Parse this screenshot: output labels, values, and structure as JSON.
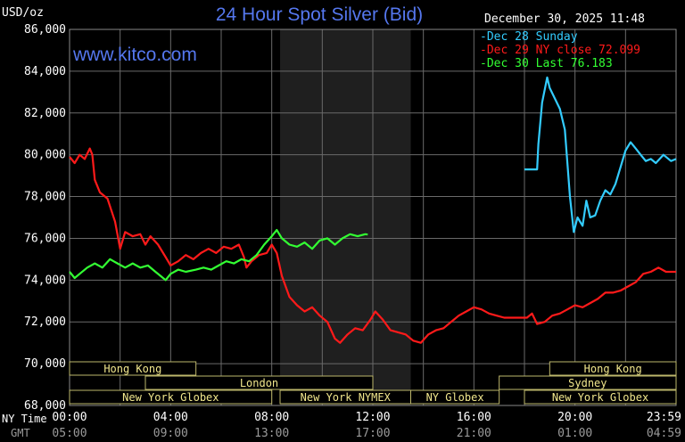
{
  "chart_data": {
    "type": "line",
    "title": "24 Hour Spot Silver (Bid)",
    "unit_label": "USD/oz",
    "watermark": "www.kitco.com",
    "timestamp": "December 30, 2025 11:48",
    "ylim": [
      68000,
      86000
    ],
    "y_ticks": [
      "86,000",
      "84,000",
      "82,000",
      "80,000",
      "78,000",
      "76,000",
      "74,000",
      "72,000",
      "70,000",
      "68,000"
    ],
    "x_axis_name": "NY Time",
    "gmt_axis_name": "GMT",
    "x_ticks": [
      "00:00",
      "04:00",
      "08:00",
      "12:00",
      "16:00",
      "20:00",
      "23:59"
    ],
    "gmt_ticks": [
      "05:00",
      "09:00",
      "13:00",
      "17:00",
      "21:00",
      "01:00",
      "04:59"
    ],
    "legend": [
      {
        "label": "Dec 28 Sunday",
        "color": "#33ccff"
      },
      {
        "label": "Dec 29 NY close 72.099",
        "color": "#ff1a1a"
      },
      {
        "label": "Dec 30 Last 76.183",
        "color": "#33ff33"
      }
    ],
    "sessions": [
      {
        "label": "Hong Kong",
        "start": 0.0,
        "end": 5.0,
        "row": 0
      },
      {
        "label": "London",
        "start": 3.0,
        "end": 12.0,
        "row": 1
      },
      {
        "label": "New York Globex",
        "start": 0.0,
        "end": 8.0,
        "row": 2
      },
      {
        "label": "New York NYMEX",
        "start": 8.33,
        "end": 13.5,
        "row": 2
      },
      {
        "label": "NY Globex",
        "start": 13.5,
        "end": 17.0,
        "row": 2
      },
      {
        "label": "Hong Kong",
        "start": 19.0,
        "end": 24.0,
        "row": 0
      },
      {
        "label": "Sydney",
        "start": 17.0,
        "end": 24.0,
        "row": 1
      },
      {
        "label": "New York Globex",
        "start": 18.0,
        "end": 24.0,
        "row": 2
      }
    ],
    "series": [
      {
        "name": "Dec 28 Sunday",
        "color": "#33ccff",
        "points": [
          [
            18.0,
            79300
          ],
          [
            18.5,
            79300
          ],
          [
            18.55,
            80500
          ],
          [
            18.7,
            82500
          ],
          [
            18.9,
            83700
          ],
          [
            19.0,
            83200
          ],
          [
            19.2,
            82700
          ],
          [
            19.4,
            82200
          ],
          [
            19.6,
            81200
          ],
          [
            19.8,
            78000
          ],
          [
            19.95,
            76300
          ],
          [
            20.1,
            77000
          ],
          [
            20.3,
            76600
          ],
          [
            20.45,
            77800
          ],
          [
            20.6,
            77000
          ],
          [
            20.8,
            77100
          ],
          [
            21.0,
            77800
          ],
          [
            21.2,
            78300
          ],
          [
            21.4,
            78100
          ],
          [
            21.6,
            78600
          ],
          [
            21.8,
            79400
          ],
          [
            22.0,
            80200
          ],
          [
            22.2,
            80600
          ],
          [
            22.4,
            80300
          ],
          [
            22.6,
            80000
          ],
          [
            22.8,
            79700
          ],
          [
            23.0,
            79800
          ],
          [
            23.2,
            79600
          ],
          [
            23.5,
            80000
          ],
          [
            23.8,
            79700
          ],
          [
            24.0,
            79800
          ]
        ]
      },
      {
        "name": "Dec 29 NY close 72.099",
        "color": "#ff1a1a",
        "points": [
          [
            0.0,
            79900
          ],
          [
            0.2,
            79600
          ],
          [
            0.4,
            80000
          ],
          [
            0.6,
            79800
          ],
          [
            0.8,
            80300
          ],
          [
            0.9,
            80000
          ],
          [
            1.0,
            78800
          ],
          [
            1.2,
            78200
          ],
          [
            1.5,
            77900
          ],
          [
            1.8,
            76800
          ],
          [
            2.0,
            75500
          ],
          [
            2.2,
            76300
          ],
          [
            2.5,
            76100
          ],
          [
            2.8,
            76200
          ],
          [
            3.0,
            75700
          ],
          [
            3.2,
            76100
          ],
          [
            3.5,
            75700
          ],
          [
            3.8,
            75100
          ],
          [
            4.0,
            74700
          ],
          [
            4.3,
            74900
          ],
          [
            4.6,
            75200
          ],
          [
            4.9,
            75000
          ],
          [
            5.2,
            75300
          ],
          [
            5.5,
            75500
          ],
          [
            5.8,
            75300
          ],
          [
            6.1,
            75600
          ],
          [
            6.4,
            75500
          ],
          [
            6.7,
            75700
          ],
          [
            6.9,
            75100
          ],
          [
            7.0,
            74600
          ],
          [
            7.2,
            74900
          ],
          [
            7.5,
            75200
          ],
          [
            7.8,
            75300
          ],
          [
            8.0,
            75700
          ],
          [
            8.2,
            75300
          ],
          [
            8.4,
            74200
          ],
          [
            8.7,
            73200
          ],
          [
            9.0,
            72800
          ],
          [
            9.3,
            72500
          ],
          [
            9.6,
            72700
          ],
          [
            9.9,
            72300
          ],
          [
            10.2,
            72000
          ],
          [
            10.5,
            71200
          ],
          [
            10.7,
            71000
          ],
          [
            11.0,
            71400
          ],
          [
            11.3,
            71700
          ],
          [
            11.6,
            71600
          ],
          [
            11.9,
            72100
          ],
          [
            12.1,
            72500
          ],
          [
            12.4,
            72100
          ],
          [
            12.7,
            71600
          ],
          [
            13.0,
            71500
          ],
          [
            13.3,
            71400
          ],
          [
            13.6,
            71100
          ],
          [
            13.9,
            71000
          ],
          [
            14.2,
            71400
          ],
          [
            14.5,
            71600
          ],
          [
            14.8,
            71700
          ],
          [
            15.1,
            72000
          ],
          [
            15.4,
            72300
          ],
          [
            15.7,
            72500
          ],
          [
            16.0,
            72700
          ],
          [
            16.3,
            72600
          ],
          [
            16.6,
            72400
          ],
          [
            16.9,
            72300
          ],
          [
            17.2,
            72200
          ],
          [
            17.5,
            72200
          ],
          [
            17.8,
            72200
          ],
          [
            18.1,
            72200
          ],
          [
            18.3,
            72400
          ],
          [
            18.5,
            71900
          ],
          [
            18.8,
            72000
          ],
          [
            19.1,
            72300
          ],
          [
            19.4,
            72400
          ],
          [
            19.7,
            72600
          ],
          [
            20.0,
            72800
          ],
          [
            20.3,
            72700
          ],
          [
            20.6,
            72900
          ],
          [
            20.9,
            73100
          ],
          [
            21.2,
            73400
          ],
          [
            21.5,
            73400
          ],
          [
            21.8,
            73500
          ],
          [
            22.1,
            73700
          ],
          [
            22.4,
            73900
          ],
          [
            22.7,
            74300
          ],
          [
            23.0,
            74400
          ],
          [
            23.3,
            74600
          ],
          [
            23.6,
            74400
          ],
          [
            24.0,
            74400
          ]
        ]
      },
      {
        "name": "Dec 30 Last 76.183",
        "color": "#33ff33",
        "points": [
          [
            0.0,
            74400
          ],
          [
            0.2,
            74100
          ],
          [
            0.4,
            74300
          ],
          [
            0.7,
            74600
          ],
          [
            1.0,
            74800
          ],
          [
            1.3,
            74600
          ],
          [
            1.6,
            75000
          ],
          [
            1.9,
            74800
          ],
          [
            2.2,
            74600
          ],
          [
            2.5,
            74800
          ],
          [
            2.8,
            74600
          ],
          [
            3.1,
            74700
          ],
          [
            3.4,
            74400
          ],
          [
            3.6,
            74200
          ],
          [
            3.8,
            74000
          ],
          [
            4.0,
            74300
          ],
          [
            4.3,
            74500
          ],
          [
            4.6,
            74400
          ],
          [
            5.0,
            74500
          ],
          [
            5.3,
            74600
          ],
          [
            5.6,
            74500
          ],
          [
            5.9,
            74700
          ],
          [
            6.2,
            74900
          ],
          [
            6.5,
            74800
          ],
          [
            6.8,
            75000
          ],
          [
            7.1,
            74900
          ],
          [
            7.4,
            75200
          ],
          [
            7.7,
            75700
          ],
          [
            8.0,
            76100
          ],
          [
            8.2,
            76400
          ],
          [
            8.4,
            76000
          ],
          [
            8.7,
            75700
          ],
          [
            9.0,
            75600
          ],
          [
            9.3,
            75800
          ],
          [
            9.6,
            75500
          ],
          [
            9.9,
            75900
          ],
          [
            10.2,
            76000
          ],
          [
            10.5,
            75700
          ],
          [
            10.8,
            76000
          ],
          [
            11.1,
            76200
          ],
          [
            11.4,
            76100
          ],
          [
            11.7,
            76200
          ],
          [
            11.8,
            76183
          ]
        ]
      }
    ],
    "shaded_region": {
      "start": 8.33,
      "end": 13.5
    }
  }
}
